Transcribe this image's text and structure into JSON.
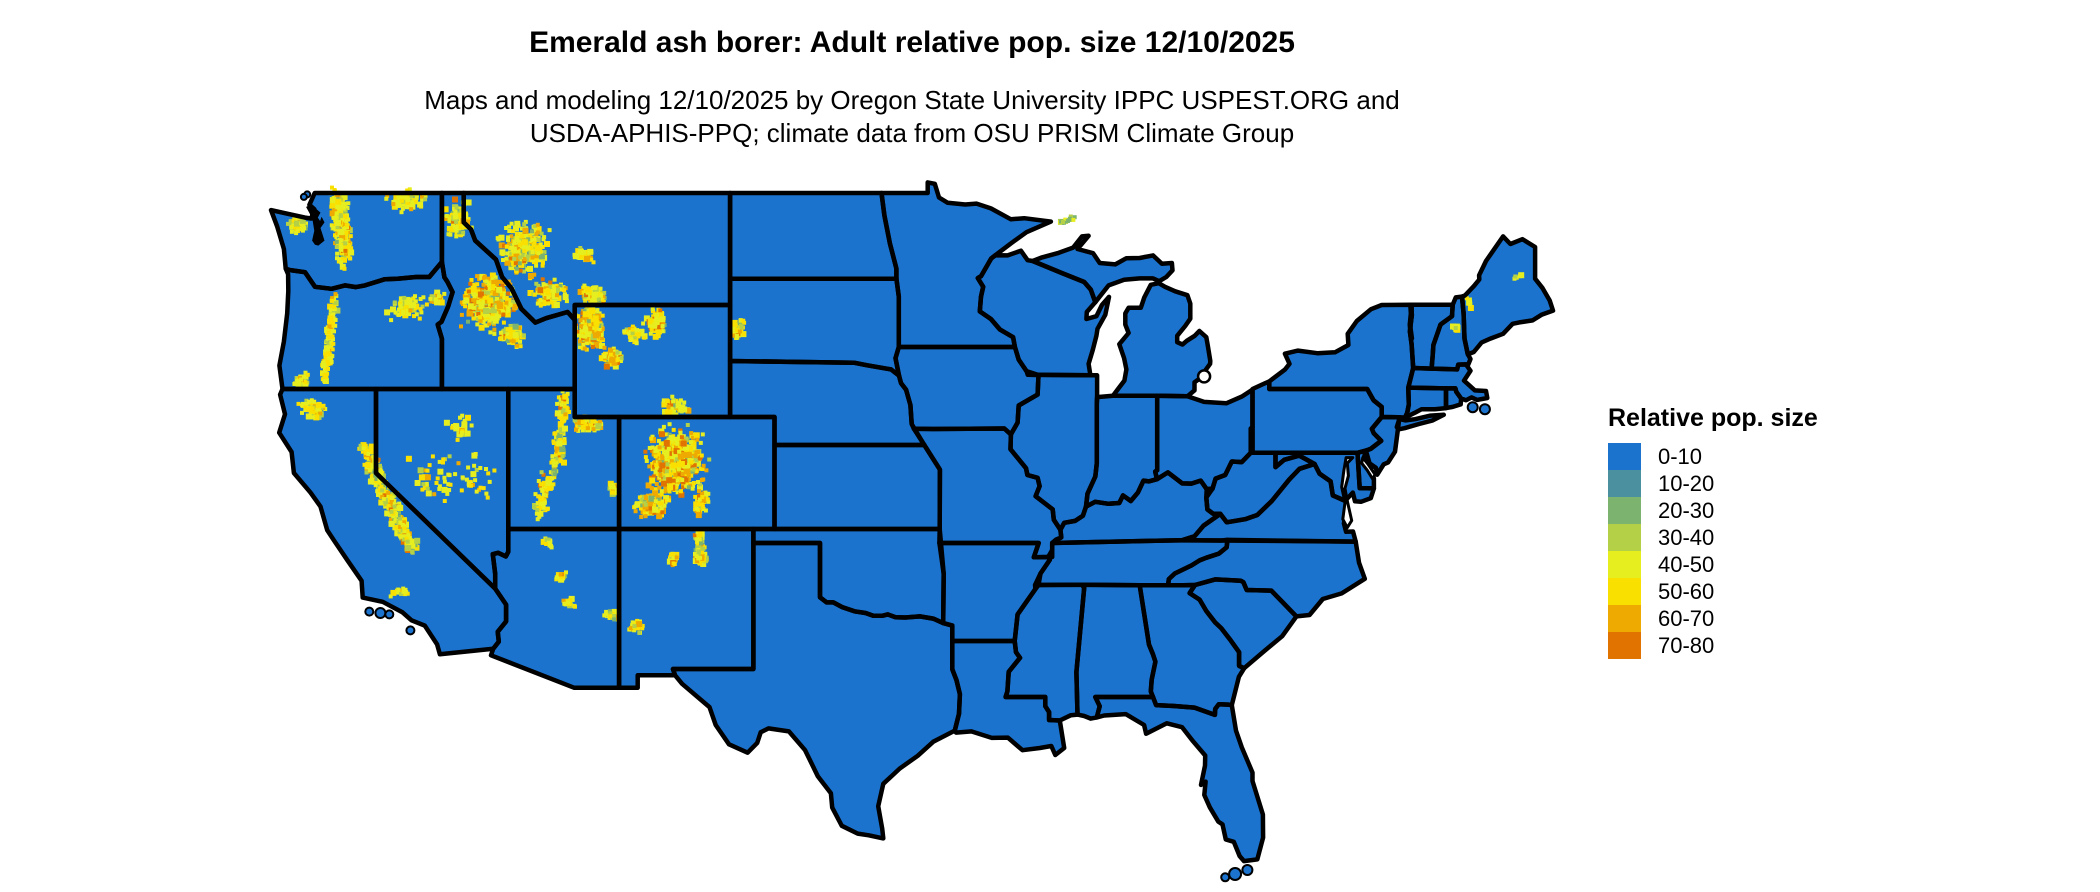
{
  "header": {
    "title": "Emerald ash borer: Adult relative pop. size 12/10/2025",
    "subtitle_line1": "Maps and modeling 12/10/2025 by Oregon State University IPPC USPEST.ORG and",
    "subtitle_line2": "USDA-APHIS-PPQ; climate data from OSU PRISM Climate Group"
  },
  "legend": {
    "title": "Relative pop. size",
    "entries": [
      {
        "label": "0-10",
        "color": "#1c73cd"
      },
      {
        "label": "10-20",
        "color": "#4b909f"
      },
      {
        "label": "20-30",
        "color": "#7cb36f"
      },
      {
        "label": "30-40",
        "color": "#b3d047"
      },
      {
        "label": "40-50",
        "color": "#e7ee1f"
      },
      {
        "label": "50-60",
        "color": "#f9e000"
      },
      {
        "label": "60-70",
        "color": "#eeaa00"
      },
      {
        "label": "70-80",
        "color": "#e17300"
      }
    ]
  },
  "map_data": {
    "type": "choropleth-raster",
    "region": "Conterminous United States",
    "base_class": "0-10",
    "base_color": "#1c73cd",
    "border_color": "#000000",
    "water_color": "#ffffff",
    "palettes": {
      "normal": [
        [
          "#e7ee1f",
          40
        ],
        [
          "#f9e000",
          28
        ],
        [
          "#b3d047",
          12
        ],
        [
          "#eeaa00",
          10
        ],
        [
          "#7cb36f",
          5
        ],
        [
          "#e17300",
          5
        ]
      ],
      "hot": [
        [
          "#e7ee1f",
          28
        ],
        [
          "#f9e000",
          26
        ],
        [
          "#eeaa00",
          22
        ],
        [
          "#e17300",
          14
        ],
        [
          "#b3d047",
          7
        ],
        [
          "#7cb36f",
          3
        ]
      ],
      "sparse": [
        [
          "#e7ee1f",
          55
        ],
        [
          "#f9e000",
          30
        ],
        [
          "#b3d047",
          10
        ],
        [
          "#eeaa00",
          5
        ]
      ],
      "green": [
        [
          "#7cb36f",
          50
        ],
        [
          "#b3d047",
          35
        ],
        [
          "#e7ee1f",
          15
        ]
      ]
    },
    "hotspots": [
      {
        "name": "wa-north-cascades",
        "type": "band",
        "lon1": -121.7,
        "lat1": 48.95,
        "lon2": -121.4,
        "lat2": 46.6,
        "w": 0.55,
        "n": 300,
        "palette": "normal"
      },
      {
        "name": "wa-okanogan-ne",
        "type": "blob",
        "lon": -118.7,
        "lat": 48.75,
        "rx": 1.1,
        "ry": 0.5,
        "n": 90,
        "palette": "sparse"
      },
      {
        "name": "wa-olympics",
        "type": "blob",
        "lon": -123.55,
        "lat": 47.85,
        "rx": 0.5,
        "ry": 0.33,
        "n": 55,
        "palette": "normal"
      },
      {
        "name": "or-cascades",
        "type": "band",
        "lon1": -121.9,
        "lat1": 45.3,
        "lon2": -122.3,
        "lat2": 42.2,
        "w": 0.3,
        "n": 130,
        "palette": "sparse"
      },
      {
        "name": "or-blue-mtns",
        "type": "blob",
        "lon": -118.6,
        "lat": 44.9,
        "rx": 1.0,
        "ry": 0.55,
        "n": 80,
        "palette": "sparse"
      },
      {
        "name": "or-wallowa",
        "type": "blob",
        "lon": -117.25,
        "lat": 45.25,
        "rx": 0.4,
        "ry": 0.3,
        "n": 35,
        "palette": "normal"
      },
      {
        "name": "or-klamath",
        "type": "blob",
        "lon": -123.3,
        "lat": 42.3,
        "rx": 0.55,
        "ry": 0.4,
        "n": 35,
        "palette": "sparse"
      },
      {
        "name": "ca-shasta-trinity",
        "type": "blob",
        "lon": -122.8,
        "lat": 41.3,
        "rx": 0.75,
        "ry": 0.55,
        "n": 60,
        "palette": "sparse"
      },
      {
        "name": "ca-sierra-nevada",
        "type": "band",
        "lon1": -120.55,
        "lat1": 39.9,
        "lon2": -118.4,
        "lat2": 36.3,
        "w": 0.5,
        "n": 330,
        "palette": "normal"
      },
      {
        "name": "ca-socal-ranges",
        "type": "blob",
        "lon": -118.9,
        "lat": 34.75,
        "rx": 0.6,
        "ry": 0.25,
        "n": 18,
        "palette": "sparse"
      },
      {
        "name": "nv-central",
        "type": "blob",
        "lon": -117.2,
        "lat": 38.9,
        "rx": 1.6,
        "ry": 1.3,
        "n": 40,
        "palette": "sparse"
      },
      {
        "name": "nv-east",
        "type": "blob",
        "lon": -115.6,
        "lat": 38.7,
        "rx": 1.1,
        "ry": 1.1,
        "n": 25,
        "palette": "sparse"
      },
      {
        "name": "nv-ruby",
        "type": "blob",
        "lon": -116.2,
        "lat": 40.6,
        "rx": 0.9,
        "ry": 0.6,
        "n": 25,
        "palette": "sparse"
      },
      {
        "name": "id-central",
        "type": "blob",
        "lon": -114.9,
        "lat": 45.1,
        "rx": 1.45,
        "ry": 1.15,
        "n": 420,
        "palette": "hot"
      },
      {
        "name": "id-panhandle",
        "type": "blob",
        "lon": -116.3,
        "lat": 48.0,
        "rx": 0.75,
        "ry": 0.9,
        "n": 110,
        "palette": "normal"
      },
      {
        "name": "id-south",
        "type": "blob",
        "lon": -113.9,
        "lat": 43.9,
        "rx": 0.9,
        "ry": 0.5,
        "n": 70,
        "palette": "normal"
      },
      {
        "name": "mt-west",
        "type": "blob",
        "lon": -113.35,
        "lat": 47.0,
        "rx": 1.35,
        "ry": 1.15,
        "n": 260,
        "palette": "normal"
      },
      {
        "name": "mt-southwest",
        "type": "blob",
        "lon": -112.2,
        "lat": 45.4,
        "rx": 1.0,
        "ry": 0.65,
        "n": 110,
        "palette": "normal"
      },
      {
        "name": "mt-absaroka",
        "type": "blob",
        "lon": -110.2,
        "lat": 45.35,
        "rx": 0.85,
        "ry": 0.5,
        "n": 90,
        "palette": "normal"
      },
      {
        "name": "mt-little-belt",
        "type": "blob",
        "lon": -110.6,
        "lat": 46.8,
        "rx": 0.5,
        "ry": 0.4,
        "n": 40,
        "palette": "normal"
      },
      {
        "name": "wy-yellowstone",
        "type": "blob",
        "lon": -110.35,
        "lat": 44.15,
        "rx": 0.85,
        "ry": 0.95,
        "n": 220,
        "palette": "hot"
      },
      {
        "name": "wy-wind-river",
        "type": "blob",
        "lon": -109.35,
        "lat": 43.1,
        "rx": 0.6,
        "ry": 0.5,
        "n": 90,
        "palette": "hot"
      },
      {
        "name": "wy-bighorn",
        "type": "blob",
        "lon": -107.35,
        "lat": 44.35,
        "rx": 0.5,
        "ry": 0.65,
        "n": 90,
        "palette": "normal"
      },
      {
        "name": "wy-south",
        "type": "blob",
        "lon": -106.6,
        "lat": 41.35,
        "rx": 0.75,
        "ry": 0.45,
        "n": 55,
        "palette": "normal"
      },
      {
        "name": "wy-central-scatter",
        "type": "blob",
        "lon": -108.5,
        "lat": 44.0,
        "rx": 0.8,
        "ry": 0.5,
        "n": 40,
        "palette": "sparse"
      },
      {
        "name": "sd-black-hills",
        "type": "blob",
        "lon": -103.7,
        "lat": 44.1,
        "rx": 0.4,
        "ry": 0.5,
        "n": 55,
        "palette": "normal"
      },
      {
        "name": "ut-uinta",
        "type": "blob",
        "lon": -110.45,
        "lat": 40.75,
        "rx": 0.8,
        "ry": 0.35,
        "n": 110,
        "palette": "hot"
      },
      {
        "name": "ut-wasatch",
        "type": "band",
        "lon1": -111.5,
        "lat1": 41.8,
        "lon2": -111.85,
        "lat2": 39.2,
        "w": 0.4,
        "n": 130,
        "palette": "normal"
      },
      {
        "name": "ut-plateaus",
        "type": "band",
        "lon1": -112.15,
        "lat1": 38.9,
        "lon2": -112.7,
        "lat2": 37.6,
        "w": 0.45,
        "n": 90,
        "palette": "normal"
      },
      {
        "name": "ut-lasal",
        "type": "blob",
        "lon": -109.3,
        "lat": 38.4,
        "rx": 0.3,
        "ry": 0.3,
        "n": 20,
        "palette": "normal"
      },
      {
        "name": "co-rockies",
        "type": "blob",
        "lon": -106.5,
        "lat": 39.4,
        "rx": 1.6,
        "ry": 1.45,
        "n": 600,
        "palette": "hot"
      },
      {
        "name": "co-san-juan",
        "type": "blob",
        "lon": -107.6,
        "lat": 37.85,
        "rx": 0.95,
        "ry": 0.55,
        "n": 200,
        "palette": "hot"
      },
      {
        "name": "co-sangre-de-cristo",
        "type": "band",
        "lon1": -105.5,
        "lat1": 37.6,
        "lon2": -105.2,
        "lat2": 38.3,
        "w": 0.35,
        "n": 60,
        "palette": "hot"
      },
      {
        "name": "nm-sangre-de-cristo",
        "type": "band",
        "lon1": -105.45,
        "lat1": 36.9,
        "lon2": -105.35,
        "lat2": 35.8,
        "w": 0.35,
        "n": 70,
        "palette": "normal"
      },
      {
        "name": "nm-jemez",
        "type": "blob",
        "lon": -106.55,
        "lat": 35.95,
        "rx": 0.35,
        "ry": 0.3,
        "n": 25,
        "palette": "normal"
      },
      {
        "name": "nm-gila",
        "type": "blob",
        "lon": -108.3,
        "lat": 33.5,
        "rx": 0.5,
        "ry": 0.35,
        "n": 30,
        "palette": "sparse"
      },
      {
        "name": "az-san-francisco-peaks",
        "type": "blob",
        "lon": -111.7,
        "lat": 35.3,
        "rx": 0.35,
        "ry": 0.25,
        "n": 22,
        "palette": "normal"
      },
      {
        "name": "az-white-mtns",
        "type": "blob",
        "lon": -109.45,
        "lat": 33.95,
        "rx": 0.45,
        "ry": 0.3,
        "n": 28,
        "palette": "normal"
      },
      {
        "name": "az-kaibab",
        "type": "blob",
        "lon": -112.25,
        "lat": 36.5,
        "rx": 0.3,
        "ry": 0.25,
        "n": 14,
        "palette": "sparse"
      },
      {
        "name": "az-mogollon",
        "type": "blob",
        "lon": -111.3,
        "lat": 34.4,
        "rx": 0.5,
        "ry": 0.25,
        "n": 15,
        "palette": "sparse"
      },
      {
        "name": "nh-white-mtns",
        "type": "blob",
        "lon": -71.35,
        "lat": 44.2,
        "rx": 0.3,
        "ry": 0.2,
        "n": 9,
        "palette": "sparse"
      },
      {
        "name": "me-west",
        "type": "blob",
        "lon": -70.7,
        "lat": 45.1,
        "rx": 0.25,
        "ry": 0.25,
        "n": 7,
        "palette": "sparse"
      },
      {
        "name": "me-north",
        "type": "blob",
        "lon": -68.6,
        "lat": 46.0,
        "rx": 0.2,
        "ry": 0.15,
        "n": 5,
        "palette": "sparse"
      },
      {
        "name": "mi-isle-royale",
        "type": "band",
        "lon1": -89.2,
        "lat1": 47.95,
        "lon2": -88.45,
        "lat2": 48.15,
        "w": 0.1,
        "n": 18,
        "palette": "green"
      }
    ]
  }
}
